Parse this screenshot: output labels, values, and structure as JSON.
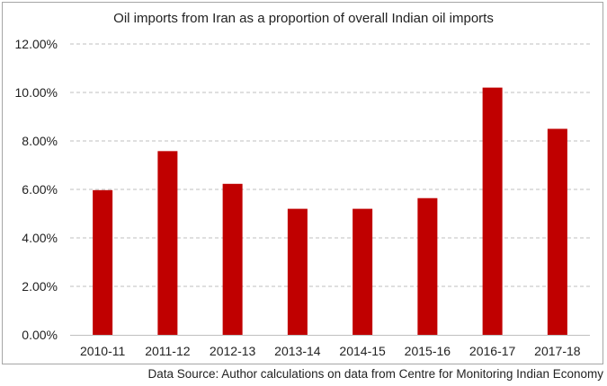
{
  "chart_data": {
    "type": "bar",
    "title": "Oil imports from Iran as a proportion of overall Indian oil imports",
    "categories": [
      "2010-11",
      "2011-12",
      "2012-13",
      "2013-14",
      "2014-15",
      "2015-16",
      "2016-17",
      "2017-18"
    ],
    "values": [
      5.97,
      7.58,
      6.23,
      5.2,
      5.2,
      5.64,
      10.2,
      8.5
    ],
    "ylim": [
      0,
      12
    ],
    "y_ticks": [
      "0.00%",
      "2.00%",
      "4.00%",
      "6.00%",
      "8.00%",
      "10.00%",
      "12.00%"
    ],
    "y_tick_values": [
      0,
      2,
      4,
      6,
      8,
      10,
      12
    ],
    "grid": "horizontal dashed",
    "bar_color": "#c00000",
    "xlabel": "",
    "ylabel": ""
  },
  "source": "Data Source: Author calculations on data from Centre for Monitoring Indian Economy"
}
